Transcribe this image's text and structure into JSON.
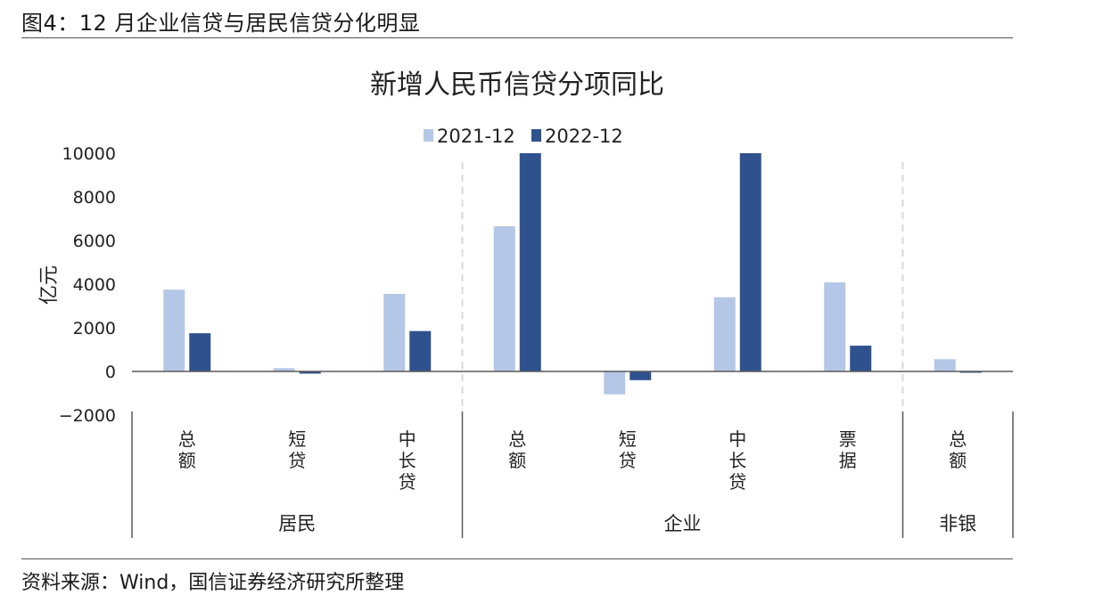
{
  "caption": "图4：12 月企业信贷与居民信贷分化明显",
  "source": "资料来源：Wind，国信证券经济研究所整理",
  "colors": {
    "series_2021": "#b4c7e7",
    "series_2022": "#2f528f",
    "axis": "#595959",
    "divider": "#d9d9d9"
  },
  "chart_data": {
    "type": "bar",
    "title": "新增人民币信贷分项同比",
    "ylabel": "亿元",
    "ylim": [
      -2000,
      10000
    ],
    "yticks": [
      10000,
      8000,
      6000,
      4000,
      2000,
      0,
      -2000
    ],
    "categories": [
      "总额",
      "短贷",
      "中长贷",
      "总额",
      "短贷",
      "中长贷",
      "票据",
      "总额"
    ],
    "groups": [
      {
        "label": "居民",
        "count": 3
      },
      {
        "label": "企业",
        "count": 4
      },
      {
        "label": "非银",
        "count": 1
      }
    ],
    "series": [
      {
        "name": "2021-12",
        "values": [
          3750,
          150,
          3550,
          6650,
          -1050,
          3400,
          4080,
          560
        ]
      },
      {
        "name": "2022-12",
        "values": [
          1750,
          -100,
          1850,
          10000,
          -400,
          10000,
          1180,
          -60
        ]
      }
    ],
    "legend_position": "top-center",
    "grid": false
  }
}
